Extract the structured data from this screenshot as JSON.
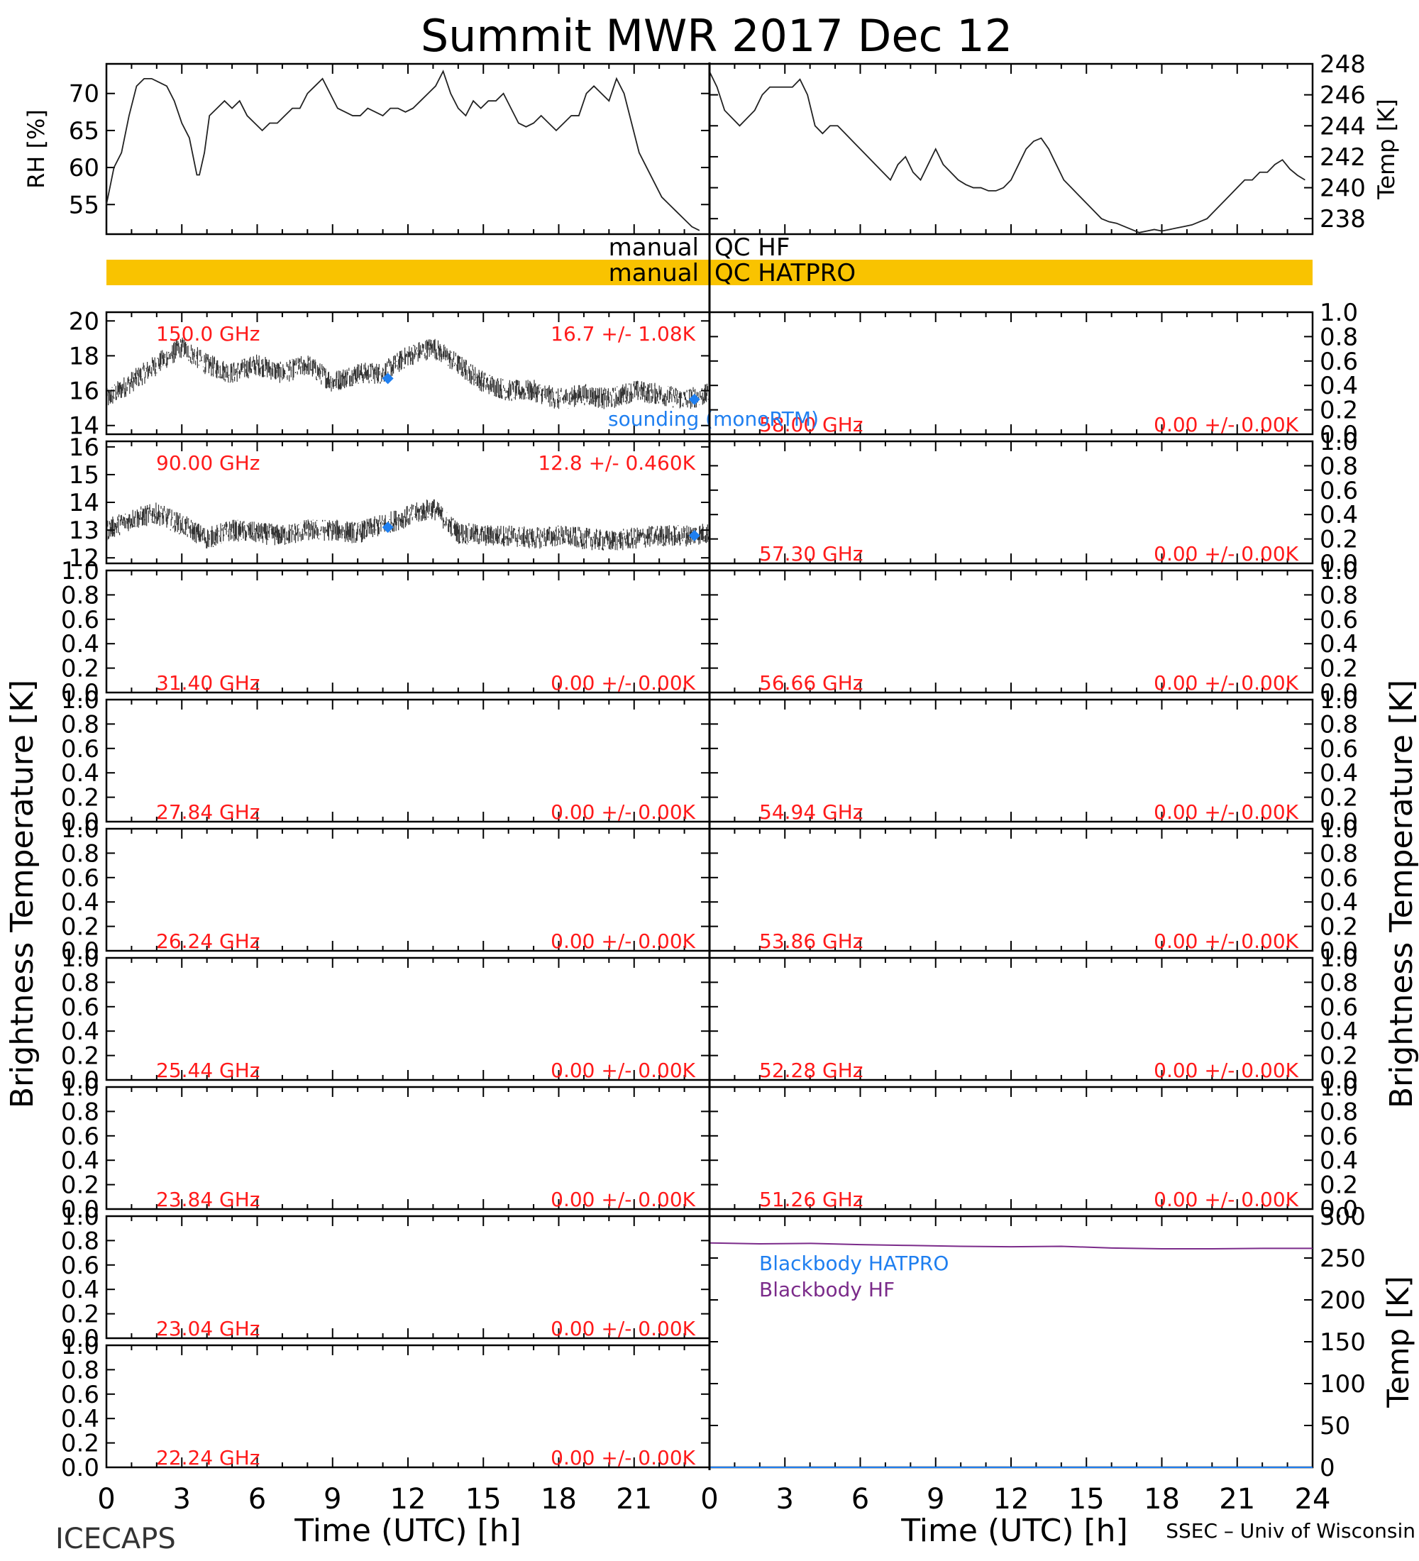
{
  "title": "Summit MWR 2017 Dec 12",
  "footer": {
    "left": "ICECAPS",
    "right": "SSEC – Univ of Wisconsin"
  },
  "xaxis": {
    "label": "Time (UTC) [h]",
    "ticks_left": [
      "0",
      "3",
      "6",
      "9",
      "12",
      "15",
      "18",
      "21"
    ],
    "ticks_right": [
      "0",
      "3",
      "6",
      "9",
      "12",
      "15",
      "18",
      "21",
      "24"
    ]
  },
  "side_labels": {
    "left": "Brightness Temperature [K]",
    "right": "Brightness Temperature [K]"
  },
  "colors": {
    "qc_bar": "#f9c300",
    "annotation": "#ff1a1a",
    "sounding": "#1f7ff0",
    "hf": "#7b2b8a",
    "hatpro": "#1f7ff0"
  },
  "qc": {
    "hf_label_left": "manual",
    "hf_label_right": "QC HF",
    "hatpro_label_left": "manual",
    "hatpro_label_right": "QC HATPRO"
  },
  "sounding_label": "sounding (monoRTM)",
  "chart_data": [
    {
      "id": "rh",
      "type": "line",
      "ylabel": "RH [%]",
      "xlim": [
        0,
        24
      ],
      "ylim": [
        51,
        74
      ],
      "yticks": [
        "55",
        "60",
        "65",
        "70"
      ],
      "x": [
        0,
        0.3,
        0.6,
        0.9,
        1.2,
        1.5,
        1.8,
        2.1,
        2.4,
        2.7,
        3.0,
        3.3,
        3.6,
        3.7,
        3.9,
        4.1,
        4.4,
        4.7,
        5.0,
        5.3,
        5.6,
        5.9,
        6.2,
        6.5,
        6.8,
        7.1,
        7.4,
        7.7,
        8.0,
        8.3,
        8.6,
        8.9,
        9.2,
        9.5,
        9.8,
        10.1,
        10.4,
        10.7,
        11.0,
        11.3,
        11.6,
        11.9,
        12.2,
        12.5,
        12.8,
        13.1,
        13.4,
        13.7,
        14.0,
        14.3,
        14.6,
        14.9,
        15.2,
        15.5,
        15.8,
        16.1,
        16.4,
        16.7,
        17.0,
        17.3,
        17.6,
        17.9,
        18.2,
        18.5,
        18.8,
        19.1,
        19.4,
        19.7,
        20.0,
        20.3,
        20.6,
        20.9,
        21.2,
        21.5,
        21.8,
        22.1,
        22.4,
        22.7,
        23.0,
        23.3,
        23.6
      ],
      "y": [
        55,
        60,
        62,
        67,
        71,
        72,
        72,
        71.5,
        71,
        69,
        66,
        64,
        59,
        59,
        62,
        67,
        68,
        69,
        68,
        69,
        67,
        66,
        65,
        66,
        66,
        67,
        68,
        68,
        70,
        71,
        72,
        70,
        68,
        67.5,
        67,
        67,
        68,
        67.5,
        67,
        68,
        68,
        67.5,
        68,
        69,
        70,
        71,
        73,
        70,
        68,
        67,
        69,
        68,
        69,
        69,
        70,
        68,
        66,
        65.5,
        66,
        67,
        66,
        65,
        66,
        67,
        67,
        70,
        71,
        70,
        69,
        72,
        70,
        66,
        62,
        60,
        58,
        56,
        55,
        54,
        53,
        52,
        51.5
      ]
    },
    {
      "id": "temp",
      "type": "line",
      "ylabel": "Temp [K]",
      "xlim": [
        0,
        24
      ],
      "ylim": [
        237,
        248
      ],
      "yticks": [
        "238",
        "240",
        "242",
        "244",
        "246",
        "248"
      ],
      "x": [
        0,
        0.3,
        0.6,
        0.9,
        1.2,
        1.5,
        1.8,
        2.1,
        2.4,
        2.7,
        3.0,
        3.3,
        3.6,
        3.9,
        4.2,
        4.5,
        4.8,
        5.1,
        5.4,
        5.7,
        6.0,
        6.3,
        6.6,
        6.9,
        7.2,
        7.5,
        7.8,
        8.1,
        8.4,
        8.7,
        9.0,
        9.3,
        9.6,
        9.9,
        10.2,
        10.5,
        10.8,
        11.1,
        11.4,
        11.7,
        12.0,
        12.3,
        12.6,
        12.9,
        13.2,
        13.5,
        13.8,
        14.1,
        14.4,
        14.7,
        15.0,
        15.3,
        15.6,
        15.9,
        16.2,
        16.5,
        16.8,
        17.1,
        17.4,
        17.7,
        18.0,
        18.3,
        18.6,
        18.9,
        19.2,
        19.5,
        19.8,
        20.1,
        20.4,
        20.7,
        21.0,
        21.3,
        21.6,
        21.9,
        22.2,
        22.5,
        22.8,
        23.1,
        23.4,
        23.7
      ],
      "y": [
        247.5,
        246.5,
        245,
        244.5,
        244,
        244.5,
        245,
        246,
        246.5,
        246.5,
        246.5,
        246.5,
        247,
        246,
        244,
        243.5,
        244,
        244,
        243.5,
        243,
        242.5,
        242,
        241.5,
        241,
        240.5,
        241.5,
        242,
        241,
        240.5,
        241.5,
        242.5,
        241.5,
        241,
        240.5,
        240.2,
        240,
        240,
        239.8,
        239.8,
        240,
        240.5,
        241.5,
        242.5,
        243,
        243.2,
        242.5,
        241.5,
        240.5,
        240,
        239.5,
        239,
        238.5,
        238,
        237.8,
        237.7,
        237.5,
        237.3,
        237.1,
        237.2,
        237.3,
        237.2,
        237.3,
        237.4,
        237.5,
        237.6,
        237.8,
        238,
        238.5,
        239,
        239.5,
        240,
        240.5,
        240.5,
        241,
        241,
        241.5,
        241.8,
        241.2,
        240.8,
        240.5
      ]
    },
    {
      "id": "ch150",
      "type": "scatter",
      "freq": "150.0 GHz",
      "stats": "16.7 +/-  1.08K",
      "xlim": [
        0,
        24
      ],
      "ylim": [
        13.5,
        20.5
      ],
      "yticks": [
        "14",
        "16",
        "18",
        "20"
      ],
      "x": [
        0,
        1,
        2,
        3,
        4,
        5,
        6,
        7,
        8,
        9,
        10,
        11,
        12,
        13,
        14,
        15,
        16,
        17,
        18,
        19,
        20,
        21,
        22,
        23,
        24
      ],
      "y": [
        15.5,
        16.5,
        17.5,
        18.5,
        17.5,
        17,
        17.5,
        17,
        17.5,
        16.5,
        17,
        17,
        18,
        18.5,
        17.5,
        16.5,
        16,
        16,
        15.5,
        15.8,
        15.5,
        16,
        15.8,
        15.5,
        15.8
      ],
      "sounding_x": [
        11.2,
        23.4
      ],
      "sounding_y": [
        16.7,
        15.5
      ]
    },
    {
      "id": "ch90",
      "type": "scatter",
      "freq": "90.00 GHz",
      "stats": "12.8 +/- 0.460K",
      "xlim": [
        0,
        24
      ],
      "ylim": [
        11.8,
        16.2
      ],
      "yticks": [
        "12",
        "13",
        "14",
        "15",
        "16"
      ],
      "x": [
        0,
        1,
        2,
        3,
        4,
        5,
        6,
        7,
        8,
        9,
        10,
        11,
        12,
        13,
        14,
        15,
        16,
        17,
        18,
        19,
        20,
        21,
        22,
        23,
        24
      ],
      "y": [
        13,
        13.4,
        13.6,
        13.2,
        12.7,
        13,
        12.9,
        12.8,
        13,
        13,
        12.9,
        13.2,
        13.5,
        13.8,
        12.9,
        12.8,
        12.8,
        12.7,
        12.8,
        12.7,
        12.6,
        12.7,
        12.8,
        12.8,
        12.9
      ],
      "sounding_x": [
        11.2,
        23.4
      ],
      "sounding_y": [
        13.1,
        12.8
      ]
    },
    {
      "id": "ch31",
      "type": "line",
      "freq": "31.40 GHz",
      "stats": "0.00 +/-  0.00K",
      "ylim": [
        0,
        1
      ],
      "yticks": [
        "0.0",
        "0.2",
        "0.4",
        "0.6",
        "0.8",
        "1.0"
      ],
      "x": [],
      "y": []
    },
    {
      "id": "ch27",
      "type": "line",
      "freq": "27.84 GHz",
      "stats": "0.00 +/-  0.00K",
      "ylim": [
        0,
        1
      ],
      "yticks": [
        "0.0",
        "0.2",
        "0.4",
        "0.6",
        "0.8",
        "1.0"
      ],
      "x": [],
      "y": []
    },
    {
      "id": "ch26",
      "type": "line",
      "freq": "26.24 GHz",
      "stats": "0.00 +/-  0.00K",
      "ylim": [
        0,
        1
      ],
      "yticks": [
        "0.0",
        "0.2",
        "0.4",
        "0.6",
        "0.8",
        "1.0"
      ],
      "x": [],
      "y": []
    },
    {
      "id": "ch25",
      "type": "line",
      "freq": "25.44 GHz",
      "stats": "0.00 +/-  0.00K",
      "ylim": [
        0,
        1
      ],
      "yticks": [
        "0.0",
        "0.2",
        "0.4",
        "0.6",
        "0.8",
        "1.0"
      ],
      "x": [],
      "y": []
    },
    {
      "id": "ch238",
      "type": "line",
      "freq": "23.84 GHz",
      "stats": "0.00 +/-  0.00K",
      "ylim": [
        0,
        1
      ],
      "yticks": [
        "0.0",
        "0.2",
        "0.4",
        "0.6",
        "0.8",
        "1.0"
      ],
      "x": [],
      "y": []
    },
    {
      "id": "ch230",
      "type": "line",
      "freq": "23.04 GHz",
      "stats": "0.00 +/-  0.00K",
      "ylim": [
        0,
        1
      ],
      "yticks": [
        "0.0",
        "0.2",
        "0.4",
        "0.6",
        "0.8",
        "1.0"
      ],
      "x": [],
      "y": []
    },
    {
      "id": "ch222",
      "type": "line",
      "freq": "22.24 GHz",
      "stats": "0.00 +/-  0.00K",
      "ylim": [
        0,
        1
      ],
      "yticks": [
        "0.0",
        "0.2",
        "0.4",
        "0.6",
        "0.8",
        "1.0"
      ],
      "x": [],
      "y": []
    },
    {
      "id": "ch58",
      "type": "line",
      "freq": "58.00 GHz",
      "stats": "0.00 +/-  0.00K",
      "ylim": [
        0,
        1
      ],
      "yticks": [
        "0.0",
        "0.2",
        "0.4",
        "0.6",
        "0.8",
        "1.0"
      ],
      "x": [],
      "y": []
    },
    {
      "id": "ch573",
      "type": "line",
      "freq": "57.30 GHz",
      "stats": "0.00 +/-  0.00K",
      "ylim": [
        0,
        1
      ],
      "yticks": [
        "0.0",
        "0.2",
        "0.4",
        "0.6",
        "0.8",
        "1.0"
      ],
      "x": [],
      "y": []
    },
    {
      "id": "ch5666",
      "type": "line",
      "freq": "56.66 GHz",
      "stats": "0.00 +/-  0.00K",
      "ylim": [
        0,
        1
      ],
      "yticks": [
        "0.0",
        "0.2",
        "0.4",
        "0.6",
        "0.8",
        "1.0"
      ],
      "x": [],
      "y": []
    },
    {
      "id": "ch5494",
      "type": "line",
      "freq": "54.94 GHz",
      "stats": "0.00 +/-  0.00K",
      "ylim": [
        0,
        1
      ],
      "yticks": [
        "0.0",
        "0.2",
        "0.4",
        "0.6",
        "0.8",
        "1.0"
      ],
      "x": [],
      "y": []
    },
    {
      "id": "ch5386",
      "type": "line",
      "freq": "53.86 GHz",
      "stats": "0.00 +/-  0.00K",
      "ylim": [
        0,
        1
      ],
      "yticks": [
        "0.0",
        "0.2",
        "0.4",
        "0.6",
        "0.8",
        "1.0"
      ],
      "x": [],
      "y": []
    },
    {
      "id": "ch5228",
      "type": "line",
      "freq": "52.28 GHz",
      "stats": "0.00 +/-  0.00K",
      "ylim": [
        0,
        1
      ],
      "yticks": [
        "0.0",
        "0.2",
        "0.4",
        "0.6",
        "0.8",
        "1.0"
      ],
      "x": [],
      "y": []
    },
    {
      "id": "ch5126",
      "type": "line",
      "freq": "51.26 GHz",
      "stats": "0.00 +/-  0.00K",
      "ylim": [
        0,
        1
      ],
      "yticks": [
        "0.0",
        "0.2",
        "0.4",
        "0.6",
        "0.8",
        "1.0"
      ],
      "x": [],
      "y": []
    },
    {
      "id": "blackbody",
      "type": "line",
      "ylabel": "Temp [K]",
      "xlim": [
        0,
        24
      ],
      "ylim": [
        0,
        300
      ],
      "yticks": [
        "0",
        "50",
        "100",
        "150",
        "200",
        "250",
        "300"
      ],
      "series": [
        {
          "name": "Blackbody HATPRO",
          "x": [
            0,
            24
          ],
          "y": [
            0,
            0
          ]
        },
        {
          "name": "Blackbody HF",
          "x": [
            0,
            2,
            4,
            6,
            8,
            10,
            12,
            14,
            16,
            18,
            20,
            22,
            24
          ],
          "y": [
            268,
            267,
            267.5,
            266,
            265,
            264,
            263.5,
            264,
            262,
            261,
            261,
            261.5,
            261.5
          ]
        }
      ]
    }
  ]
}
